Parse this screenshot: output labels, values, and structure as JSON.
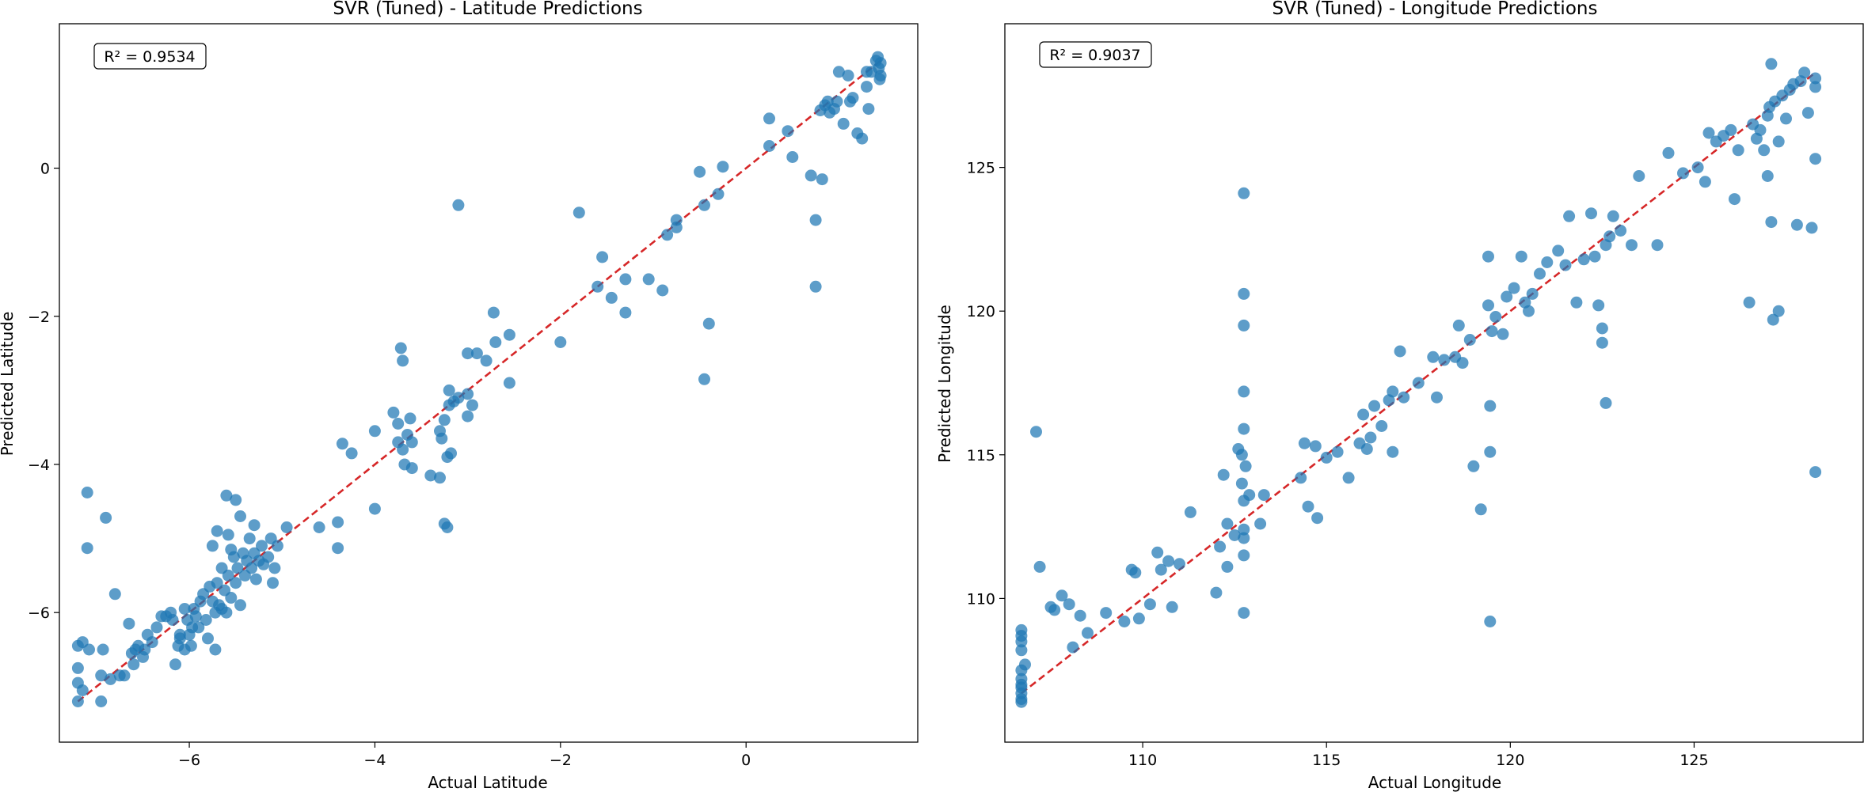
{
  "chart_data": [
    {
      "type": "scatter",
      "title": "SVR (Tuned) - Latitude Predictions",
      "xlabel": "Actual Latitude",
      "ylabel": "Predicted Latitude",
      "annotation": "R² = 0.9534",
      "xlim": [
        -7.4,
        1.85
      ],
      "ylim": [
        -7.75,
        1.95
      ],
      "xticks": [
        -6,
        -4,
        -2,
        0
      ],
      "yticks": [
        -6,
        -4,
        -2,
        0
      ],
      "tick_labels_x": [
        "−6",
        "−4",
        "−2",
        "0"
      ],
      "tick_labels_y": [
        "−6",
        "−4",
        "−2",
        "0"
      ],
      "grid": false,
      "point_color": "#1f77b4",
      "reference_line": {
        "from": [
          -7.2,
          -7.2
        ],
        "to": [
          1.45,
          1.45
        ],
        "color": "#d62728",
        "style": "dashed"
      },
      "points": [
        [
          -7.2,
          -7.2
        ],
        [
          -7.2,
          -6.95
        ],
        [
          -7.2,
          -6.75
        ],
        [
          -7.2,
          -6.45
        ],
        [
          -7.15,
          -7.05
        ],
        [
          -7.15,
          -6.4
        ],
        [
          -7.1,
          -4.38
        ],
        [
          -7.1,
          -5.13
        ],
        [
          -7.08,
          -6.5
        ],
        [
          -6.95,
          -7.2
        ],
        [
          -6.95,
          -6.85
        ],
        [
          -6.93,
          -6.5
        ],
        [
          -6.9,
          -4.72
        ],
        [
          -6.85,
          -6.9
        ],
        [
          -6.8,
          -5.75
        ],
        [
          -6.75,
          -6.85
        ],
        [
          -6.7,
          -6.85
        ],
        [
          -6.65,
          -6.15
        ],
        [
          -6.62,
          -6.55
        ],
        [
          -6.6,
          -6.7
        ],
        [
          -6.58,
          -6.5
        ],
        [
          -6.55,
          -6.45
        ],
        [
          -6.5,
          -6.6
        ],
        [
          -6.48,
          -6.5
        ],
        [
          -6.45,
          -6.3
        ],
        [
          -6.4,
          -6.4
        ],
        [
          -6.35,
          -6.2
        ],
        [
          -6.3,
          -6.05
        ],
        [
          -6.25,
          -6.05
        ],
        [
          -6.2,
          -6.0
        ],
        [
          -6.18,
          -6.1
        ],
        [
          -6.15,
          -6.7
        ],
        [
          -6.12,
          -6.45
        ],
        [
          -6.1,
          -6.3
        ],
        [
          -6.05,
          -5.95
        ],
        [
          -6.02,
          -6.1
        ],
        [
          -6.0,
          -6.3
        ],
        [
          -5.98,
          -6.45
        ],
        [
          -5.97,
          -6.2
        ],
        [
          -5.95,
          -5.95
        ],
        [
          -5.93,
          -6.05
        ],
        [
          -5.9,
          -6.2
        ],
        [
          -5.88,
          -5.85
        ],
        [
          -5.85,
          -5.75
        ],
        [
          -5.82,
          -6.1
        ],
        [
          -5.8,
          -6.35
        ],
        [
          -5.78,
          -5.65
        ],
        [
          -5.75,
          -5.85
        ],
        [
          -5.72,
          -6.0
        ],
        [
          -5.7,
          -5.6
        ],
        [
          -5.68,
          -5.9
        ],
        [
          -5.65,
          -5.4
        ],
        [
          -5.62,
          -5.7
        ],
        [
          -5.6,
          -6.0
        ],
        [
          -5.58,
          -5.5
        ],
        [
          -5.55,
          -5.8
        ],
        [
          -5.52,
          -5.25
        ],
        [
          -5.5,
          -5.6
        ],
        [
          -5.48,
          -5.4
        ],
        [
          -5.45,
          -5.9
        ],
        [
          -5.42,
          -5.2
        ],
        [
          -5.4,
          -5.5
        ],
        [
          -5.38,
          -5.3
        ],
        [
          -5.35,
          -5.0
        ],
        [
          -5.33,
          -5.4
        ],
        [
          -5.3,
          -5.2
        ],
        [
          -5.28,
          -5.55
        ],
        [
          -5.25,
          -5.3
        ],
        [
          -5.22,
          -5.1
        ],
        [
          -5.2,
          -5.35
        ],
        [
          -5.15,
          -5.25
        ],
        [
          -5.12,
          -5.0
        ],
        [
          -5.1,
          -5.6
        ],
        [
          -5.08,
          -5.4
        ],
        [
          -5.05,
          -5.1
        ],
        [
          -5.6,
          -4.42
        ],
        [
          -5.58,
          -4.95
        ],
        [
          -5.5,
          -4.48
        ],
        [
          -5.45,
          -4.7
        ],
        [
          -5.3,
          -4.82
        ],
        [
          -5.7,
          -4.9
        ],
        [
          -5.75,
          -5.1
        ],
        [
          -5.72,
          -6.5
        ],
        [
          -5.65,
          -5.95
        ],
        [
          -5.55,
          -5.15
        ],
        [
          -6.1,
          -6.35
        ],
        [
          -6.05,
          -6.5
        ],
        [
          -4.95,
          -4.85
        ],
        [
          -4.6,
          -4.85
        ],
        [
          -4.4,
          -5.13
        ],
        [
          -4.4,
          -4.78
        ],
        [
          -4.35,
          -3.72
        ],
        [
          -4.25,
          -3.85
        ],
        [
          -4.0,
          -4.6
        ],
        [
          -4.0,
          -3.55
        ],
        [
          -3.8,
          -3.3
        ],
        [
          -3.75,
          -3.45
        ],
        [
          -3.75,
          -3.7
        ],
        [
          -3.72,
          -2.43
        ],
        [
          -3.7,
          -2.6
        ],
        [
          -3.7,
          -3.8
        ],
        [
          -3.68,
          -4.0
        ],
        [
          -3.65,
          -3.6
        ],
        [
          -3.62,
          -3.38
        ],
        [
          -3.6,
          -3.7
        ],
        [
          -3.6,
          -4.05
        ],
        [
          -3.4,
          -4.15
        ],
        [
          -3.3,
          -4.18
        ],
        [
          -3.3,
          -3.55
        ],
        [
          -3.28,
          -3.65
        ],
        [
          -3.25,
          -3.4
        ],
        [
          -3.25,
          -4.8
        ],
        [
          -3.22,
          -4.85
        ],
        [
          -3.22,
          -3.9
        ],
        [
          -3.2,
          -3.0
        ],
        [
          -3.2,
          -3.2
        ],
        [
          -3.18,
          -3.85
        ],
        [
          -3.15,
          -3.15
        ],
        [
          -3.1,
          -0.5
        ],
        [
          -3.1,
          -3.1
        ],
        [
          -3.0,
          -3.35
        ],
        [
          -3.0,
          -3.05
        ],
        [
          -3.0,
          -2.5
        ],
        [
          -2.95,
          -3.2
        ],
        [
          -2.9,
          -2.5
        ],
        [
          -2.8,
          -2.6
        ],
        [
          -2.7,
          -2.35
        ],
        [
          -2.72,
          -1.95
        ],
        [
          -2.55,
          -2.9
        ],
        [
          -2.55,
          -2.25
        ],
        [
          -2.0,
          -2.35
        ],
        [
          -1.8,
          -0.6
        ],
        [
          -1.6,
          -1.6
        ],
        [
          -1.55,
          -1.2
        ],
        [
          -1.45,
          -1.75
        ],
        [
          -1.3,
          -1.95
        ],
        [
          -1.3,
          -1.5
        ],
        [
          -1.05,
          -1.5
        ],
        [
          -0.9,
          -1.65
        ],
        [
          -0.85,
          -0.9
        ],
        [
          -0.75,
          -0.7
        ],
        [
          -0.75,
          -0.8
        ],
        [
          -0.5,
          -0.05
        ],
        [
          -0.45,
          -0.5
        ],
        [
          -0.45,
          -2.85
        ],
        [
          -0.4,
          -2.1
        ],
        [
          -0.3,
          -0.35
        ],
        [
          -0.25,
          0.02
        ],
        [
          0.25,
          0.67
        ],
        [
          0.25,
          0.3
        ],
        [
          0.45,
          0.5
        ],
        [
          0.5,
          0.15
        ],
        [
          0.7,
          -0.1
        ],
        [
          0.75,
          -0.7
        ],
        [
          0.75,
          -1.6
        ],
        [
          0.8,
          0.78
        ],
        [
          0.82,
          -0.15
        ],
        [
          0.85,
          0.85
        ],
        [
          0.88,
          0.9
        ],
        [
          0.9,
          0.75
        ],
        [
          0.95,
          0.8
        ],
        [
          0.98,
          0.9
        ],
        [
          1.0,
          1.3
        ],
        [
          1.05,
          0.6
        ],
        [
          1.1,
          1.25
        ],
        [
          1.12,
          0.9
        ],
        [
          1.15,
          0.95
        ],
        [
          1.2,
          0.47
        ],
        [
          1.25,
          0.4
        ],
        [
          1.3,
          1.1
        ],
        [
          1.32,
          0.8
        ],
        [
          1.3,
          1.3
        ],
        [
          1.35,
          1.3
        ],
        [
          1.4,
          1.45
        ],
        [
          1.42,
          1.5
        ],
        [
          1.43,
          1.35
        ],
        [
          1.44,
          1.2
        ],
        [
          1.45,
          1.25
        ],
        [
          1.45,
          1.42
        ]
      ]
    },
    {
      "type": "scatter",
      "title": "SVR (Tuned) - Longitude Predictions",
      "xlabel": "Actual Longitude",
      "ylabel": "Predicted Longitude",
      "annotation": "R² = 0.9037",
      "xlim": [
        106.25,
        129.6
      ],
      "ylim": [
        105.0,
        130.0
      ],
      "xticks": [
        110,
        115,
        120,
        125
      ],
      "yticks": [
        110,
        115,
        120,
        125
      ],
      "tick_labels_x": [
        "110",
        "115",
        "120",
        "125"
      ],
      "tick_labels_y": [
        "110",
        "115",
        "120",
        "125"
      ],
      "grid": false,
      "point_color": "#1f77b4",
      "reference_line": {
        "from": [
          106.7,
          106.7
        ],
        "to": [
          128.3,
          128.3
        ],
        "color": "#d62728",
        "style": "dashed"
      },
      "points": [
        [
          106.7,
          106.4
        ],
        [
          106.7,
          106.5
        ],
        [
          106.7,
          106.7
        ],
        [
          106.7,
          106.9
        ],
        [
          106.7,
          107.0
        ],
        [
          106.7,
          107.2
        ],
        [
          106.7,
          107.5
        ],
        [
          106.7,
          108.2
        ],
        [
          106.7,
          108.5
        ],
        [
          106.7,
          108.7
        ],
        [
          106.7,
          108.9
        ],
        [
          106.8,
          107.7
        ],
        [
          107.1,
          115.8
        ],
        [
          107.2,
          111.1
        ],
        [
          107.5,
          109.7
        ],
        [
          107.6,
          109.6
        ],
        [
          107.8,
          110.1
        ],
        [
          108.0,
          109.8
        ],
        [
          108.1,
          108.3
        ],
        [
          108.3,
          109.4
        ],
        [
          108.5,
          108.8
        ],
        [
          109.0,
          109.5
        ],
        [
          109.5,
          109.2
        ],
        [
          109.7,
          111.0
        ],
        [
          109.8,
          110.9
        ],
        [
          109.9,
          109.3
        ],
        [
          110.2,
          109.8
        ],
        [
          110.4,
          111.6
        ],
        [
          110.5,
          111.0
        ],
        [
          110.7,
          111.3
        ],
        [
          110.8,
          109.7
        ],
        [
          111.0,
          111.2
        ],
        [
          111.3,
          113.0
        ],
        [
          112.0,
          110.2
        ],
        [
          112.1,
          111.8
        ],
        [
          112.2,
          114.3
        ],
        [
          112.3,
          112.6
        ],
        [
          112.3,
          111.1
        ],
        [
          112.5,
          112.2
        ],
        [
          112.6,
          115.2
        ],
        [
          112.7,
          114.0
        ],
        [
          112.7,
          115.0
        ],
        [
          112.75,
          124.1
        ],
        [
          112.75,
          120.6
        ],
        [
          112.75,
          119.5
        ],
        [
          112.75,
          117.2
        ],
        [
          112.75,
          115.9
        ],
        [
          112.75,
          113.4
        ],
        [
          112.75,
          112.4
        ],
        [
          112.75,
          112.1
        ],
        [
          112.75,
          111.5
        ],
        [
          112.75,
          109.5
        ],
        [
          112.8,
          114.6
        ],
        [
          112.9,
          113.6
        ],
        [
          113.2,
          112.6
        ],
        [
          113.3,
          113.6
        ],
        [
          114.3,
          114.2
        ],
        [
          114.4,
          115.4
        ],
        [
          114.5,
          113.2
        ],
        [
          114.7,
          115.3
        ],
        [
          114.75,
          112.8
        ],
        [
          115.0,
          114.9
        ],
        [
          115.3,
          115.1
        ],
        [
          115.6,
          114.2
        ],
        [
          115.9,
          115.4
        ],
        [
          116.0,
          116.4
        ],
        [
          116.1,
          115.2
        ],
        [
          116.2,
          115.6
        ],
        [
          116.3,
          116.7
        ],
        [
          116.5,
          116.0
        ],
        [
          116.7,
          116.9
        ],
        [
          116.8,
          117.2
        ],
        [
          116.8,
          115.1
        ],
        [
          117.0,
          118.6
        ],
        [
          117.1,
          117.0
        ],
        [
          117.5,
          117.5
        ],
        [
          117.9,
          118.4
        ],
        [
          118.0,
          117.0
        ],
        [
          118.2,
          118.3
        ],
        [
          118.5,
          118.4
        ],
        [
          118.6,
          119.5
        ],
        [
          118.7,
          118.2
        ],
        [
          118.9,
          119.0
        ],
        [
          119.0,
          114.6
        ],
        [
          119.2,
          113.1
        ],
        [
          119.4,
          121.9
        ],
        [
          119.4,
          120.2
        ],
        [
          119.45,
          116.7
        ],
        [
          119.45,
          115.1
        ],
        [
          119.45,
          109.2
        ],
        [
          119.5,
          119.3
        ],
        [
          119.6,
          119.8
        ],
        [
          119.8,
          119.2
        ],
        [
          119.9,
          120.5
        ],
        [
          120.1,
          120.8
        ],
        [
          120.3,
          121.9
        ],
        [
          120.4,
          120.3
        ],
        [
          120.5,
          120.0
        ],
        [
          120.6,
          120.6
        ],
        [
          120.8,
          121.3
        ],
        [
          121.0,
          121.7
        ],
        [
          121.3,
          122.1
        ],
        [
          121.5,
          121.6
        ],
        [
          121.6,
          123.3
        ],
        [
          121.8,
          120.3
        ],
        [
          122.0,
          121.8
        ],
        [
          122.2,
          123.4
        ],
        [
          122.3,
          121.9
        ],
        [
          122.4,
          120.2
        ],
        [
          122.5,
          119.4
        ],
        [
          122.5,
          118.9
        ],
        [
          122.6,
          122.3
        ],
        [
          122.6,
          116.8
        ],
        [
          122.7,
          122.6
        ],
        [
          122.8,
          123.3
        ],
        [
          123.0,
          122.8
        ],
        [
          123.3,
          122.3
        ],
        [
          123.5,
          124.7
        ],
        [
          124.0,
          122.3
        ],
        [
          124.3,
          125.5
        ],
        [
          124.7,
          124.8
        ],
        [
          125.1,
          125.0
        ],
        [
          125.3,
          124.5
        ],
        [
          125.4,
          126.2
        ],
        [
          125.6,
          125.9
        ],
        [
          125.8,
          126.1
        ],
        [
          126.0,
          126.3
        ],
        [
          126.1,
          123.9
        ],
        [
          126.2,
          125.6
        ],
        [
          126.5,
          120.3
        ],
        [
          126.6,
          126.5
        ],
        [
          126.7,
          126.0
        ],
        [
          126.8,
          126.3
        ],
        [
          126.9,
          125.6
        ],
        [
          127.0,
          126.8
        ],
        [
          127.0,
          124.7
        ],
        [
          127.05,
          127.1
        ],
        [
          127.1,
          128.6
        ],
        [
          127.1,
          123.1
        ],
        [
          127.15,
          119.7
        ],
        [
          127.2,
          127.3
        ],
        [
          127.3,
          120.0
        ],
        [
          127.3,
          125.9
        ],
        [
          127.4,
          127.5
        ],
        [
          127.5,
          126.7
        ],
        [
          127.6,
          127.7
        ],
        [
          127.7,
          127.9
        ],
        [
          127.8,
          123.0
        ],
        [
          127.9,
          128.0
        ],
        [
          128.0,
          128.3
        ],
        [
          128.1,
          126.9
        ],
        [
          128.2,
          122.9
        ],
        [
          128.3,
          128.1
        ],
        [
          128.3,
          127.8
        ],
        [
          128.3,
          125.3
        ],
        [
          128.3,
          114.4
        ]
      ]
    }
  ]
}
